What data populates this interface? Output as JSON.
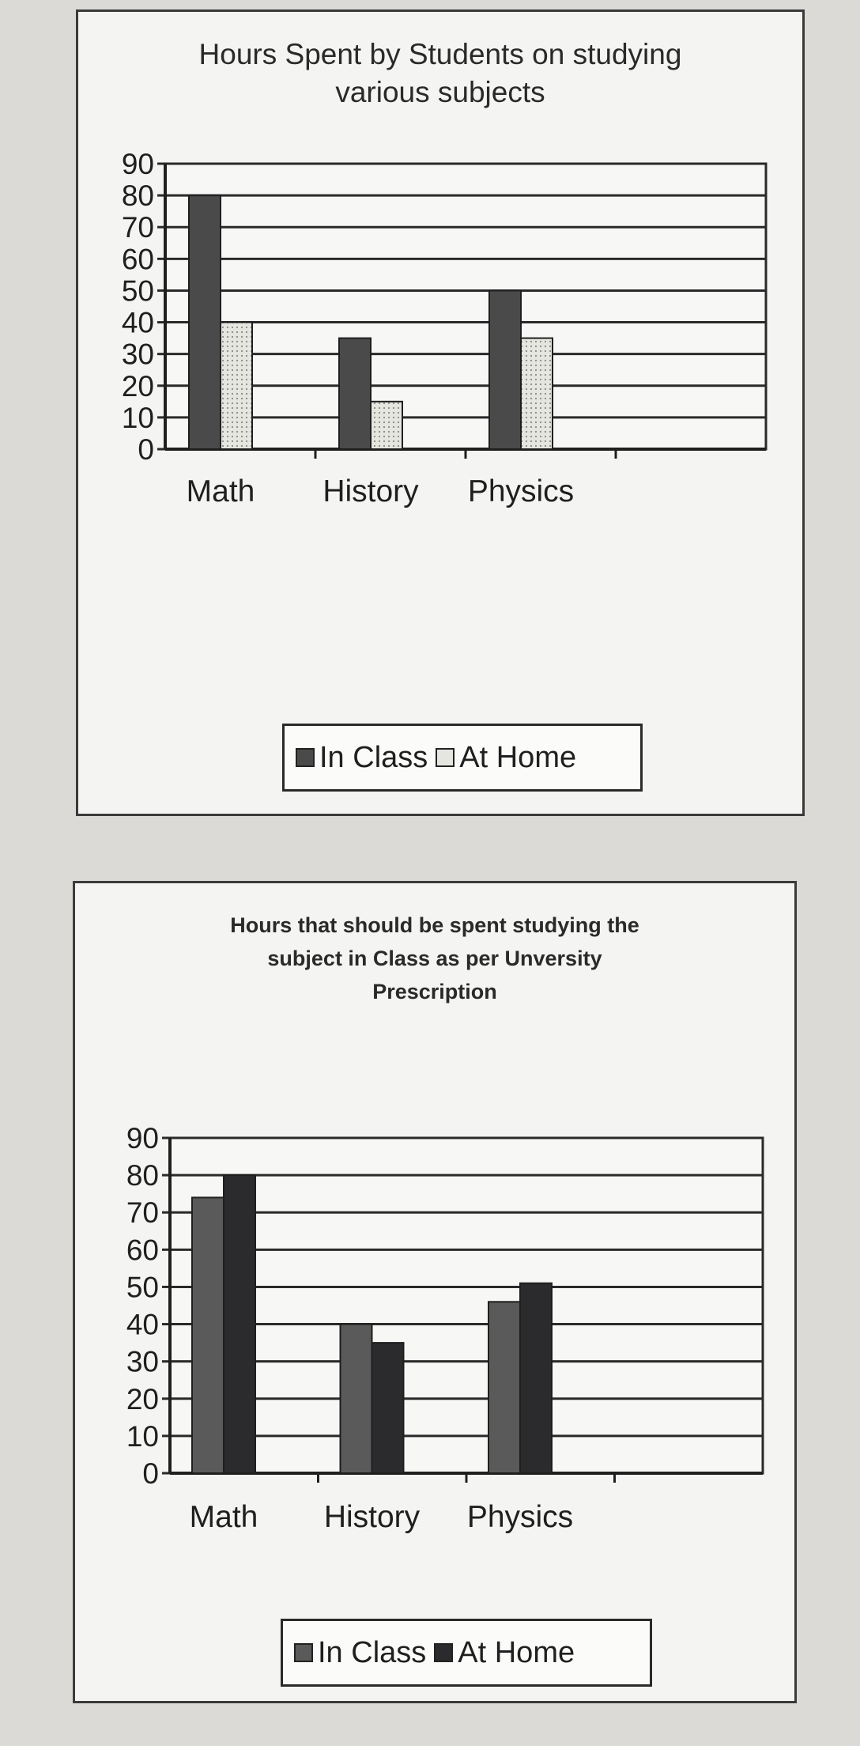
{
  "chart_data": [
    {
      "type": "bar",
      "title": "Hours Spent by Students on studying various subjects",
      "categories": [
        "Math",
        "History",
        "Physics"
      ],
      "series": [
        {
          "name": "In Class",
          "values": [
            80,
            35,
            50
          ]
        },
        {
          "name": "At Home",
          "values": [
            40,
            15,
            35
          ]
        }
      ],
      "ylim": [
        0,
        90
      ],
      "yticks": [
        "0",
        "10",
        "20",
        "30",
        "40",
        "50",
        "60",
        "70",
        "80",
        "90"
      ],
      "grid": true,
      "legend": "bottom",
      "colors": {
        "in_class": "#4a4a4a",
        "at_home": "#e6e6e0"
      }
    },
    {
      "type": "bar",
      "title": "Hours that should be spent studying the subject in Class as per Unversity Prescription",
      "categories": [
        "Math",
        "History",
        "Physics"
      ],
      "series": [
        {
          "name": "In Class",
          "values": [
            74,
            40,
            46
          ]
        },
        {
          "name": "At Home",
          "values": [
            80,
            35,
            51
          ]
        }
      ],
      "ylim": [
        0,
        90
      ],
      "yticks": [
        "0",
        "10",
        "20",
        "30",
        "40",
        "50",
        "60",
        "70",
        "80",
        "90"
      ],
      "grid": true,
      "legend": "bottom",
      "colors": {
        "in_class": "#5a5a5a",
        "at_home": "#2b2b2e"
      }
    }
  ]
}
